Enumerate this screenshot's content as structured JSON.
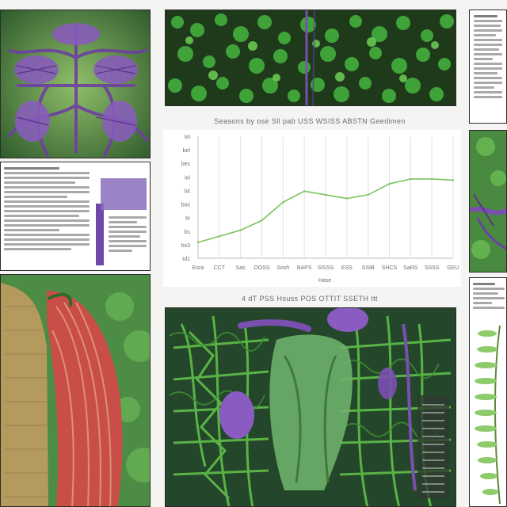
{
  "colors": {
    "line": "#7cc45a",
    "grid": "#e2e2e2",
    "purple": "#7b5aa6",
    "leaf": "#3f9a3a",
    "muscle": "#c44a45"
  },
  "icons": [
    "botanical-vein-illustration",
    "leaf-canopy-photo",
    "anatomy-muscle-illustration",
    "organ-vein-illustration",
    "fern-sprig-illustration"
  ],
  "chart_title": "Seasons by ose Sll pab USS WSISS ABSTN Geedimen",
  "xaxis_title": "Hase",
  "bottom_caption": "4 dT PSS Hsuss POS OTTIT SSETH Itt",
  "chart_data": {
    "type": "line",
    "title": "Seasons by ose Sll pab USS WSISS ABSTN Geedimen",
    "xlabel": "Hase",
    "ylabel": "",
    "y_ticks": [
      "lol",
      "bel",
      "bes",
      "ioi",
      "ti4",
      "bos",
      "te",
      "bs",
      "bs3",
      "td1"
    ],
    "x_ticks": [
      "Esra",
      "CCT",
      "Sas",
      "OOSS",
      "Sosh",
      "BAPS",
      "SISSS",
      "ESS",
      "SSIB",
      "SHCS",
      "SaRS",
      "SSSS",
      "GEU"
    ],
    "x": [
      0,
      1,
      2,
      3,
      4,
      5,
      6,
      7,
      8,
      9,
      10,
      11,
      12
    ],
    "values": [
      1.3,
      1.8,
      2.3,
      3.1,
      4.6,
      5.5,
      5.2,
      4.9,
      5.2,
      6.1,
      6.5,
      6.5,
      6.4
    ],
    "ylim": [
      0,
      10
    ],
    "grid": true,
    "legend": "none"
  }
}
